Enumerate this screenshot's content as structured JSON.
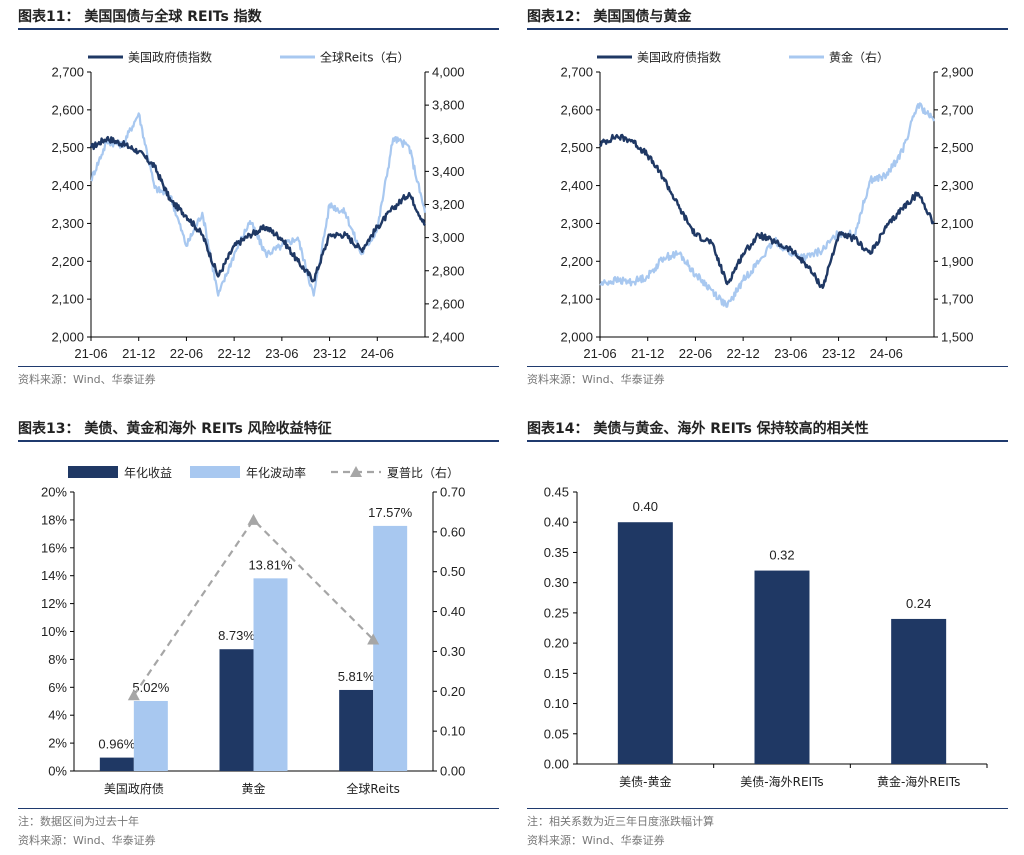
{
  "panels": [
    {
      "title": "图表11：  美国国债与全球 REITs 指数",
      "source": "资料来源：Wind、华泰证券"
    },
    {
      "title": "图表12：  美国国债与黄金",
      "source": "资料来源：Wind、华泰证券"
    },
    {
      "title": "图表13：  美债、黄金和海外 REITs 风险收益特征",
      "note": "注：数据区间为过去十年",
      "source": "资料来源：Wind、华泰证券"
    },
    {
      "title": "图表14：  美债与黄金、海外 REITs 保持较高的相关性",
      "note": "注：相关系数为近三年日度涨跌幅计算",
      "source": "资料来源：Wind、华泰证券"
    }
  ],
  "colors": {
    "dark": "#1f3864",
    "light": "#a8c8f0",
    "gray": "#a6a6a6",
    "rule": "#1f3a6e"
  },
  "chart_data": [
    {
      "type": "line",
      "x_ticks": [
        "21-06",
        "21-12",
        "22-06",
        "22-12",
        "23-06",
        "23-12",
        "24-06"
      ],
      "x_range": [
        "2021-06",
        "2024-12"
      ],
      "ylim_left": [
        2000,
        2700
      ],
      "y_ticks_left": [
        "2,000",
        "2,100",
        "2,200",
        "2,300",
        "2,400",
        "2,500",
        "2,600",
        "2,700"
      ],
      "ylim_right": [
        2400,
        4000
      ],
      "y_ticks_right": [
        "2,400",
        "2,600",
        "2,800",
        "3,000",
        "3,200",
        "3,400",
        "3,600",
        "3,800",
        "4,000"
      ],
      "legend_position": "top",
      "series": [
        {
          "name": "美国政府债指数",
          "axis": "left",
          "color": "#1f3864",
          "x": [
            "2021-06",
            "2021-08",
            "2021-10",
            "2021-12",
            "2022-02",
            "2022-04",
            "2022-06",
            "2022-08",
            "2022-10",
            "2022-12",
            "2023-02",
            "2023-04",
            "2023-06",
            "2023-08",
            "2023-10",
            "2023-12",
            "2024-02",
            "2024-04",
            "2024-06",
            "2024-08",
            "2024-10",
            "2024-12"
          ],
          "values": [
            2500,
            2525,
            2510,
            2490,
            2450,
            2360,
            2320,
            2270,
            2160,
            2240,
            2270,
            2290,
            2260,
            2200,
            2150,
            2270,
            2270,
            2230,
            2290,
            2340,
            2380,
            2295
          ]
        },
        {
          "name": "全球Reits（右）",
          "axis": "right",
          "color": "#a8c8f0",
          "x": [
            "2021-06",
            "2021-08",
            "2021-10",
            "2021-12",
            "2022-02",
            "2022-04",
            "2022-06",
            "2022-08",
            "2022-10",
            "2022-12",
            "2023-02",
            "2023-04",
            "2023-06",
            "2023-08",
            "2023-10",
            "2023-12",
            "2024-02",
            "2024-04",
            "2024-06",
            "2024-08",
            "2024-10",
            "2024-12"
          ],
          "values": [
            3350,
            3580,
            3560,
            3750,
            3300,
            3250,
            2950,
            3150,
            2650,
            2900,
            3100,
            2900,
            2950,
            3000,
            2650,
            3200,
            3150,
            2900,
            3050,
            3600,
            3550,
            3150
          ]
        }
      ]
    },
    {
      "type": "line",
      "x_ticks": [
        "21-06",
        "21-12",
        "22-06",
        "22-12",
        "23-06",
        "23-12",
        "24-06"
      ],
      "x_range": [
        "2021-06",
        "2024-12"
      ],
      "ylim_left": [
        2000,
        2700
      ],
      "y_ticks_left": [
        "2,000",
        "2,100",
        "2,200",
        "2,300",
        "2,400",
        "2,500",
        "2,600",
        "2,700"
      ],
      "ylim_right": [
        1500,
        2900
      ],
      "y_ticks_right": [
        "1,500",
        "1,700",
        "1,900",
        "2,100",
        "2,300",
        "2,500",
        "2,700",
        "2,900"
      ],
      "legend_position": "top",
      "series": [
        {
          "name": "美国政府债指数",
          "axis": "left",
          "color": "#1f3864",
          "x": [
            "2021-06",
            "2021-08",
            "2021-10",
            "2021-12",
            "2022-02",
            "2022-04",
            "2022-06",
            "2022-08",
            "2022-10",
            "2022-12",
            "2023-02",
            "2023-04",
            "2023-06",
            "2023-08",
            "2023-10",
            "2023-12",
            "2024-02",
            "2024-04",
            "2024-06",
            "2024-08",
            "2024-10",
            "2024-12"
          ],
          "values": [
            2510,
            2530,
            2520,
            2480,
            2420,
            2340,
            2270,
            2250,
            2140,
            2220,
            2270,
            2250,
            2230,
            2190,
            2130,
            2270,
            2260,
            2220,
            2290,
            2340,
            2380,
            2300
          ]
        },
        {
          "name": "黄金（右）",
          "axis": "right",
          "color": "#a8c8f0",
          "x": [
            "2021-06",
            "2021-08",
            "2021-10",
            "2021-12",
            "2022-02",
            "2022-04",
            "2022-06",
            "2022-08",
            "2022-10",
            "2022-12",
            "2023-02",
            "2023-04",
            "2023-06",
            "2023-08",
            "2023-10",
            "2023-12",
            "2024-02",
            "2024-04",
            "2024-06",
            "2024-08",
            "2024-10",
            "2024-12"
          ],
          "values": [
            1780,
            1800,
            1790,
            1820,
            1920,
            1940,
            1830,
            1750,
            1660,
            1800,
            1900,
            2010,
            1940,
            1920,
            1960,
            2050,
            2040,
            2330,
            2350,
            2480,
            2730,
            2640
          ]
        }
      ]
    },
    {
      "type": "bar",
      "categories": [
        "美国政府债",
        "黄金",
        "全球Reits"
      ],
      "ylim_left": [
        0,
        20
      ],
      "y_ticks_left": [
        "0%",
        "2%",
        "4%",
        "6%",
        "8%",
        "10%",
        "12%",
        "14%",
        "16%",
        "18%",
        "20%"
      ],
      "ylim_right": [
        0,
        0.7
      ],
      "y_ticks_right": [
        "0.00",
        "0.10",
        "0.20",
        "0.30",
        "0.40",
        "0.50",
        "0.60",
        "0.70"
      ],
      "legend_position": "top",
      "series": [
        {
          "name": "年化收益",
          "kind": "bar",
          "axis": "left",
          "color": "#1f3864",
          "values": [
            0.96,
            8.73,
            5.81
          ],
          "labels": [
            "0.96%",
            "8.73%",
            "5.81%"
          ]
        },
        {
          "name": "年化波动率",
          "kind": "bar",
          "axis": "left",
          "color": "#a8c8f0",
          "values": [
            5.02,
            13.81,
            17.57
          ],
          "labels": [
            "5.02%",
            "13.81%",
            "17.57%"
          ]
        },
        {
          "name": "夏普比（右）",
          "kind": "line",
          "axis": "right",
          "color": "#a6a6a6",
          "values": [
            0.19,
            0.63,
            0.33
          ]
        }
      ]
    },
    {
      "type": "bar",
      "categories": [
        "美债-黄金",
        "美债-海外REITs",
        "黄金-海外REITs"
      ],
      "ylim": [
        0,
        0.45
      ],
      "y_ticks": [
        "0.00",
        "0.05",
        "0.10",
        "0.15",
        "0.20",
        "0.25",
        "0.30",
        "0.35",
        "0.40",
        "0.45"
      ],
      "series": [
        {
          "name": "",
          "color": "#1f3864",
          "values": [
            0.4,
            0.32,
            0.24
          ],
          "labels": [
            "0.40",
            "0.32",
            "0.24"
          ]
        }
      ]
    }
  ]
}
